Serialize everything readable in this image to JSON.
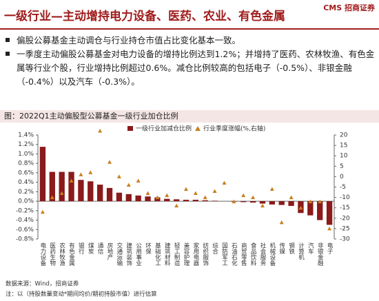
{
  "header": {
    "title": "一级行业—主动增持电力设备、医药、农业、有色金属",
    "logo": "CMS 招商证券"
  },
  "bullets": [
    "偏股公募基金主动调仓与行业持仓市值占比变化基本一致。",
    "一季度主动偏股公募基金对电力设备的增持比例达到1.2%；并增持了医药、农林牧渔、有色金属等行业个股，行业增持比例超过0.6%。减仓比例较高的包括电子（-0.5%）、非银金融（-0.4%）以及汽车（-0.3%）。"
  ],
  "chart_data": {
    "type": "bar",
    "title": "图：2022Q1主动偏股型公募基金一级行业加仓比例",
    "categories": [
      "电力设备",
      "医药生物",
      "农林牧渔",
      "有色金属",
      "银行",
      "煤炭",
      "通信",
      "房地产",
      "交通运输",
      "建筑装饰",
      "公用事业",
      "环保",
      "基础化工",
      "建筑材料",
      "轻工制造",
      "美容护理",
      "家用电器",
      "纺织服饰",
      "综合",
      "国防军工",
      "石油石化",
      "商贸零售",
      "食品饮料",
      "社会服务",
      "机械设备",
      "传媒",
      "钢铁",
      "计算机",
      "汽车",
      "非银金融",
      "电子"
    ],
    "series": [
      {
        "name": "一级行业加减仓比例",
        "color": "#8b1a1a",
        "values": [
          1.15,
          0.62,
          0.62,
          0.62,
          0.45,
          0.42,
          0.35,
          0.28,
          0.18,
          0.15,
          0.12,
          0.1,
          0.08,
          0.05,
          0.04,
          0.03,
          0.03,
          0.02,
          0.01,
          0,
          -0.01,
          -0.02,
          -0.03,
          -0.05,
          -0.07,
          -0.08,
          -0.1,
          -0.25,
          -0.3,
          -0.4,
          -0.5
        ]
      },
      {
        "name": "行业季度涨幅(%,右轴)",
        "color": "#c8801e",
        "axis": "y2",
        "values": [
          -17,
          -10,
          -8,
          -2,
          1,
          2,
          22,
          7,
          0,
          -4,
          -2,
          -8,
          -10,
          -9,
          -14,
          -6,
          -8,
          -10,
          -7,
          -3,
          -12,
          -9,
          -10,
          -14,
          -6,
          -22,
          -10,
          -15,
          -12,
          -12,
          -25
        ]
      }
    ],
    "ylim": [
      -0.8,
      1.4
    ],
    "yticks": [
      {
        "value": 1.4,
        "label": "1.4%"
      },
      {
        "value": 1.2,
        "label": "1.2%"
      },
      {
        "value": 1.0,
        "label": "1.0%"
      },
      {
        "value": 0.8,
        "label": "0.8%"
      },
      {
        "value": 0.6,
        "label": "0.6%"
      },
      {
        "value": 0.4,
        "label": "0.4%"
      },
      {
        "value": 0.2,
        "label": "0.2%"
      },
      {
        "value": 0,
        "label": "0.0%"
      },
      {
        "value": -0.2,
        "label": "-0.2%"
      },
      {
        "value": -0.4,
        "label": "-0.4%"
      },
      {
        "value": -0.6,
        "label": "-0.6%"
      },
      {
        "value": -0.8,
        "label": "-0.8%"
      }
    ],
    "y2lim": [
      -30,
      20
    ],
    "y2ticks": [
      20,
      15,
      10,
      5,
      0,
      -5,
      -10,
      -15,
      -20,
      -25,
      -30
    ]
  },
  "footer": {
    "source": "数据来源：Wind，招商证券",
    "note": "注：以（持股数量变动*期间均价/期初持股市值）进行估算"
  }
}
